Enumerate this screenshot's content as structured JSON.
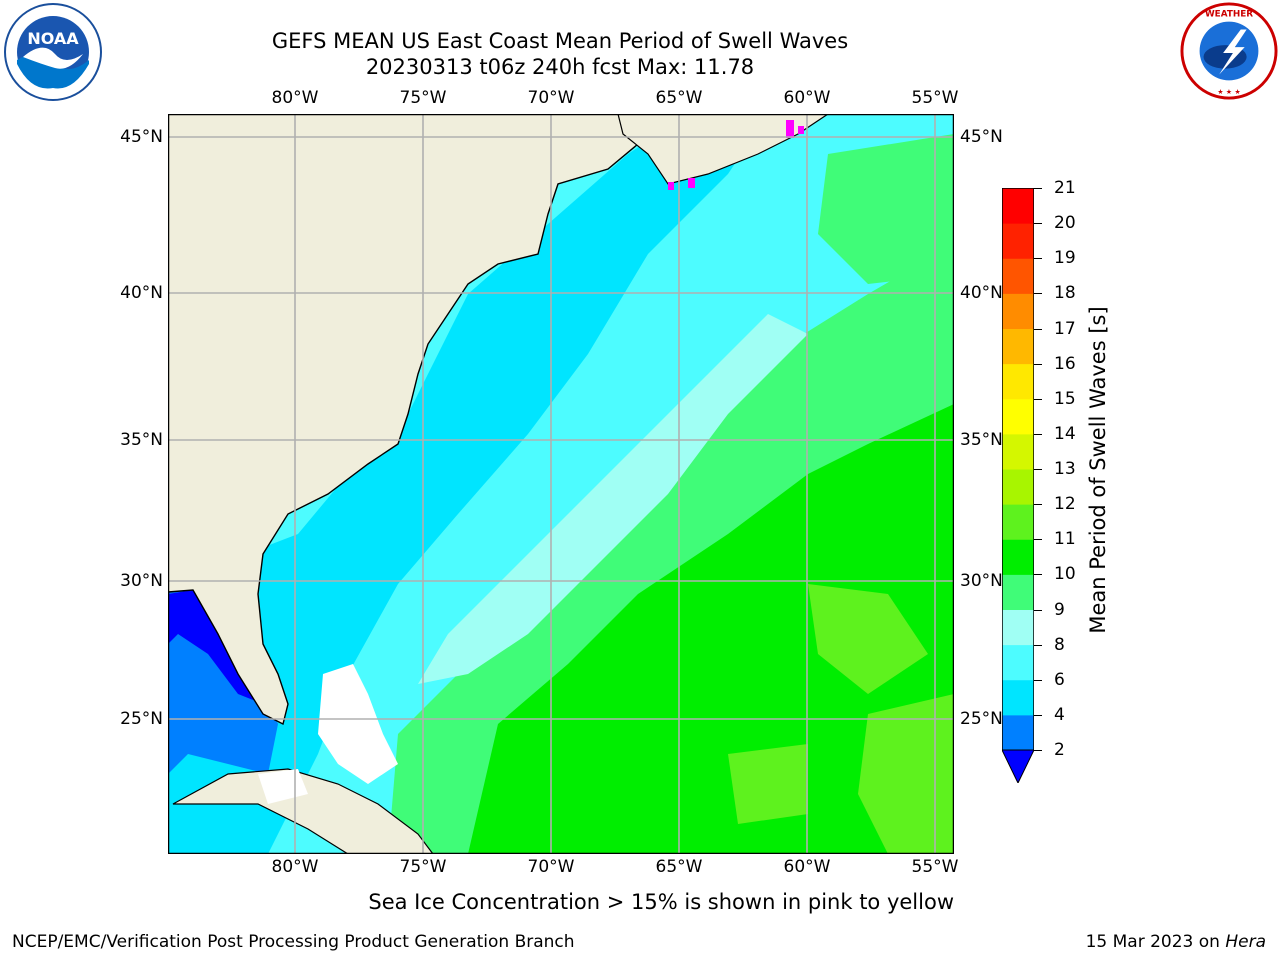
{
  "header": {
    "title_line1": "GEFS MEAN US East Coast Mean Period of Swell Waves",
    "title_line2": "20230313 t06z 240h fcst   Max: 11.78"
  },
  "logos": {
    "left": "NOAA",
    "right": "NATIONAL WEATHER SERVICE"
  },
  "map": {
    "lon_labels": [
      "80°W",
      "75°W",
      "70°W",
      "65°W",
      "60°W",
      "55°W"
    ],
    "lat_labels": [
      "45°N",
      "40°N",
      "35°N",
      "30°N",
      "25°N"
    ],
    "colors": {
      "land": "#f0eedc",
      "c2_4": "#0080ff",
      "c4_6": "#00e5ff",
      "c6_8": "#4dfcff",
      "c8_9": "#a0fff4",
      "c9_10": "#40fc78",
      "c10_11": "#00ee00",
      "c11_12": "#5ef21e",
      "below2": "#0000ff",
      "ice": "#ff00ff"
    }
  },
  "colorbar": {
    "label": "Mean Period of Swell Waves [s]",
    "ticks": [
      "2",
      "4",
      "6",
      "8",
      "9",
      "10",
      "11",
      "12",
      "13",
      "14",
      "15",
      "16",
      "17",
      "18",
      "19",
      "20",
      "21"
    ],
    "colors": [
      "#0080ff",
      "#00e5ff",
      "#4dfcff",
      "#a0fff4",
      "#40fc78",
      "#00ee00",
      "#5ef21e",
      "#a8f500",
      "#d4f700",
      "#ffff00",
      "#ffe800",
      "#ffb800",
      "#ff8c00",
      "#ff5500",
      "#ff2200",
      "#ff0000"
    ],
    "under_color": "#0000ff"
  },
  "caption": "Sea Ice Concentration > 15% is shown in pink to yellow",
  "footer": {
    "left": "NCEP/EMC/Verification Post Processing Product Generation Branch",
    "right_prefix": "15 Mar 2023 on ",
    "right_host": "Hera"
  }
}
